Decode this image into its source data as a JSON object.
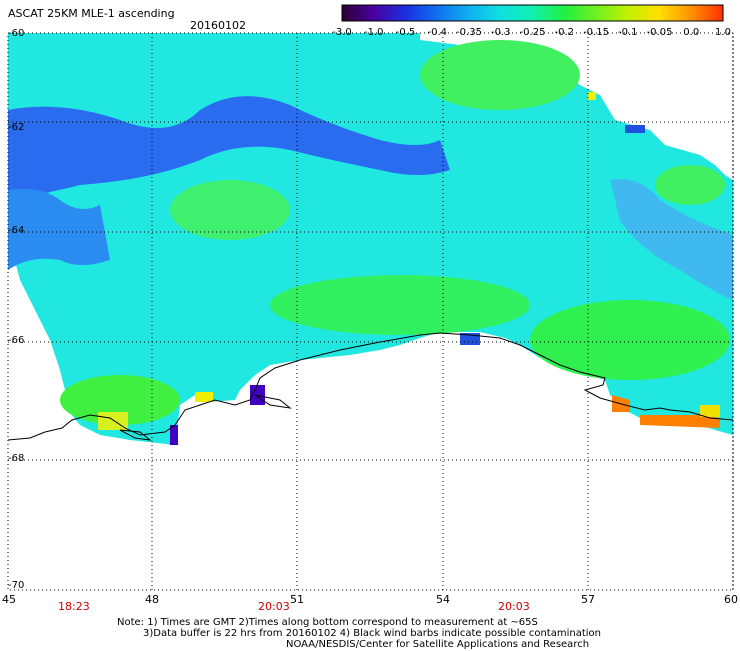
{
  "header": {
    "title": "ASCAT 25KM MLE-1 ascending",
    "date": "20160102"
  },
  "colorbar": {
    "ticks": [
      "-3.0",
      "-1.0",
      "-0.5",
      "-0.4",
      "-0.35",
      "-0.3",
      "-0.25",
      "-0.2",
      "-0.15",
      "-0.1",
      "-0.05",
      "0.0",
      "1.0"
    ],
    "colors": [
      "#2a0030",
      "#4a00a0",
      "#1a30e0",
      "#1070f0",
      "#10b0f0",
      "#10e0e0",
      "#10f0b0",
      "#20f040",
      "#70f020",
      "#c0f000",
      "#ffe000",
      "#ff9000",
      "#ff3000"
    ]
  },
  "axes": {
    "x_ticks": [
      "45",
      "48",
      "51",
      "54",
      "57",
      "60"
    ],
    "y_ticks": [
      "-60",
      "-62",
      "-64",
      "-66",
      "-68",
      "-70"
    ]
  },
  "times": [
    "18:23",
    "20:03",
    "20:03"
  ],
  "notes": {
    "line1": "Note: 1) Times are GMT 2)Times along bottom correspond to measurement at ~65S",
    "line2": "3)Data buffer is 22 hrs from 20160102 4) Black wind barbs indicate possible contamination",
    "line3": "NOAA/NESDIS/Center for Satellite Applications and Research"
  },
  "legend_colors": {
    "text_red": "#cc0000",
    "dark_blue": "#2050e0",
    "cyan": "#20d8f0",
    "green": "#20f030",
    "yellow": "#f0f000",
    "orange": "#ff8000",
    "purple": "#4000c0"
  }
}
